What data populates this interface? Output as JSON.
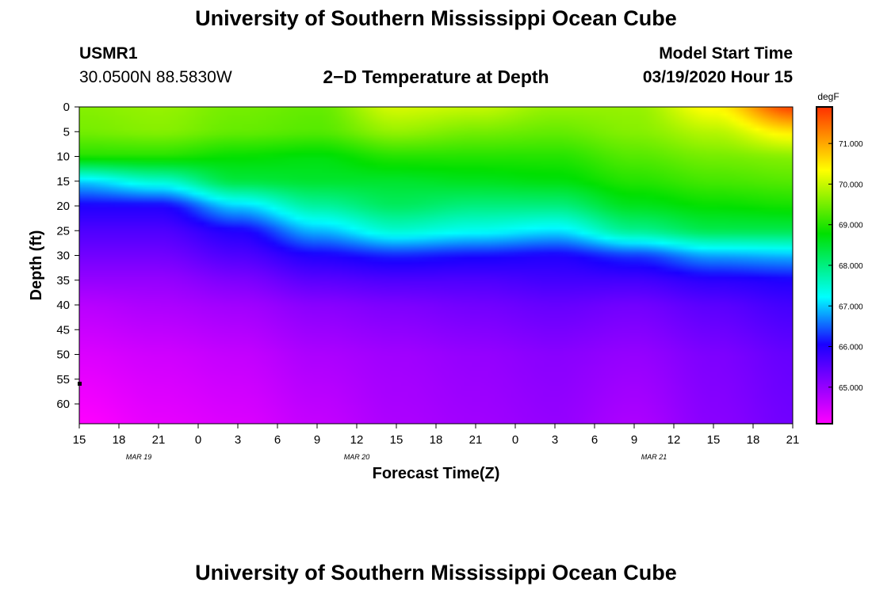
{
  "header": {
    "title_top": "University of Southern Mississippi Ocean Cube",
    "station_id": "USMR1",
    "station_coords": "30.0500N 88.5830W",
    "plot_title": "2−D Temperature at Depth",
    "model_label": "Model Start Time",
    "model_time": "03/19/2020 Hour 15"
  },
  "footer": {
    "title_bottom": "University of Southern Mississippi Ocean Cube"
  },
  "colors": {
    "low": "#ff00ff",
    "mid_low": "#1a00ff",
    "mid": "#00ffff",
    "mid_high": "#00e000",
    "high": "#ffff00",
    "top": "#ff3000"
  },
  "chart_data": {
    "type": "heatmap",
    "title": "2−D Temperature at Depth",
    "xlabel": "Forecast Time(Z)",
    "ylabel": "Depth (ft)",
    "x_tick_labels": [
      "15",
      "18",
      "21",
      "0",
      "3",
      "6",
      "9",
      "12",
      "15",
      "18",
      "21",
      "0",
      "3",
      "6",
      "9",
      "12",
      "15",
      "18",
      "21"
    ],
    "x_date_labels": [
      {
        "label": "MAR  19",
        "tick_index": 1.5
      },
      {
        "label": "MAR  20",
        "tick_index": 7
      },
      {
        "label": "MAR  21",
        "tick_index": 14.5
      }
    ],
    "y_ticks": [
      0,
      5,
      10,
      15,
      20,
      25,
      30,
      35,
      40,
      45,
      50,
      55,
      60
    ],
    "ylim": [
      0,
      64
    ],
    "x_hours_range": [
      0,
      54
    ],
    "colorbar": {
      "unit": "degF",
      "min": 64.1,
      "max": 71.9,
      "ticks": [
        "65.000",
        "66.000",
        "67.000",
        "68.000",
        "69.000",
        "70.000",
        "71.000"
      ]
    },
    "temperature_profiles": {
      "depths": [
        0,
        5,
        10,
        15,
        20,
        25,
        30,
        35,
        40,
        50,
        64
      ],
      "series": [
        {
          "hour": 0,
          "temps": [
            69.6,
            69.5,
            69.0,
            67.0,
            66.0,
            65.6,
            65.3,
            65.0,
            64.7,
            64.4,
            64.1
          ]
        },
        {
          "hour": 6,
          "temps": [
            69.7,
            69.6,
            69.0,
            67.5,
            66.0,
            65.6,
            65.3,
            65.0,
            64.8,
            64.5,
            64.3
          ]
        },
        {
          "hour": 12,
          "temps": [
            69.5,
            69.4,
            68.8,
            68.4,
            67.0,
            66.0,
            65.6,
            65.2,
            64.9,
            64.6,
            64.4
          ]
        },
        {
          "hour": 18,
          "temps": [
            69.4,
            69.3,
            68.7,
            68.5,
            67.8,
            66.9,
            66.0,
            65.5,
            65.1,
            64.8,
            64.6
          ]
        },
        {
          "hour": 24,
          "temps": [
            70.1,
            69.7,
            69.0,
            68.5,
            68.2,
            67.5,
            66.2,
            65.6,
            65.2,
            64.9,
            64.8
          ]
        },
        {
          "hour": 30,
          "temps": [
            70.0,
            69.5,
            69.0,
            68.6,
            68.0,
            67.3,
            66.1,
            65.6,
            65.3,
            65.0,
            64.9
          ]
        },
        {
          "hour": 36,
          "temps": [
            69.7,
            69.4,
            69.0,
            68.7,
            68.0,
            67.1,
            66.0,
            65.7,
            65.4,
            65.1,
            65.0
          ]
        },
        {
          "hour": 42,
          "temps": [
            69.7,
            69.6,
            69.3,
            69.0,
            68.6,
            67.9,
            66.3,
            65.7,
            65.3,
            65.0,
            64.8
          ]
        },
        {
          "hour": 48,
          "temps": [
            70.4,
            69.9,
            69.5,
            69.2,
            68.8,
            68.3,
            66.8,
            65.9,
            65.5,
            65.2,
            65.1
          ]
        },
        {
          "hour": 54,
          "temps": [
            71.8,
            70.5,
            69.6,
            69.3,
            68.9,
            68.3,
            66.9,
            66.0,
            65.7,
            65.4,
            65.3
          ]
        }
      ]
    }
  }
}
